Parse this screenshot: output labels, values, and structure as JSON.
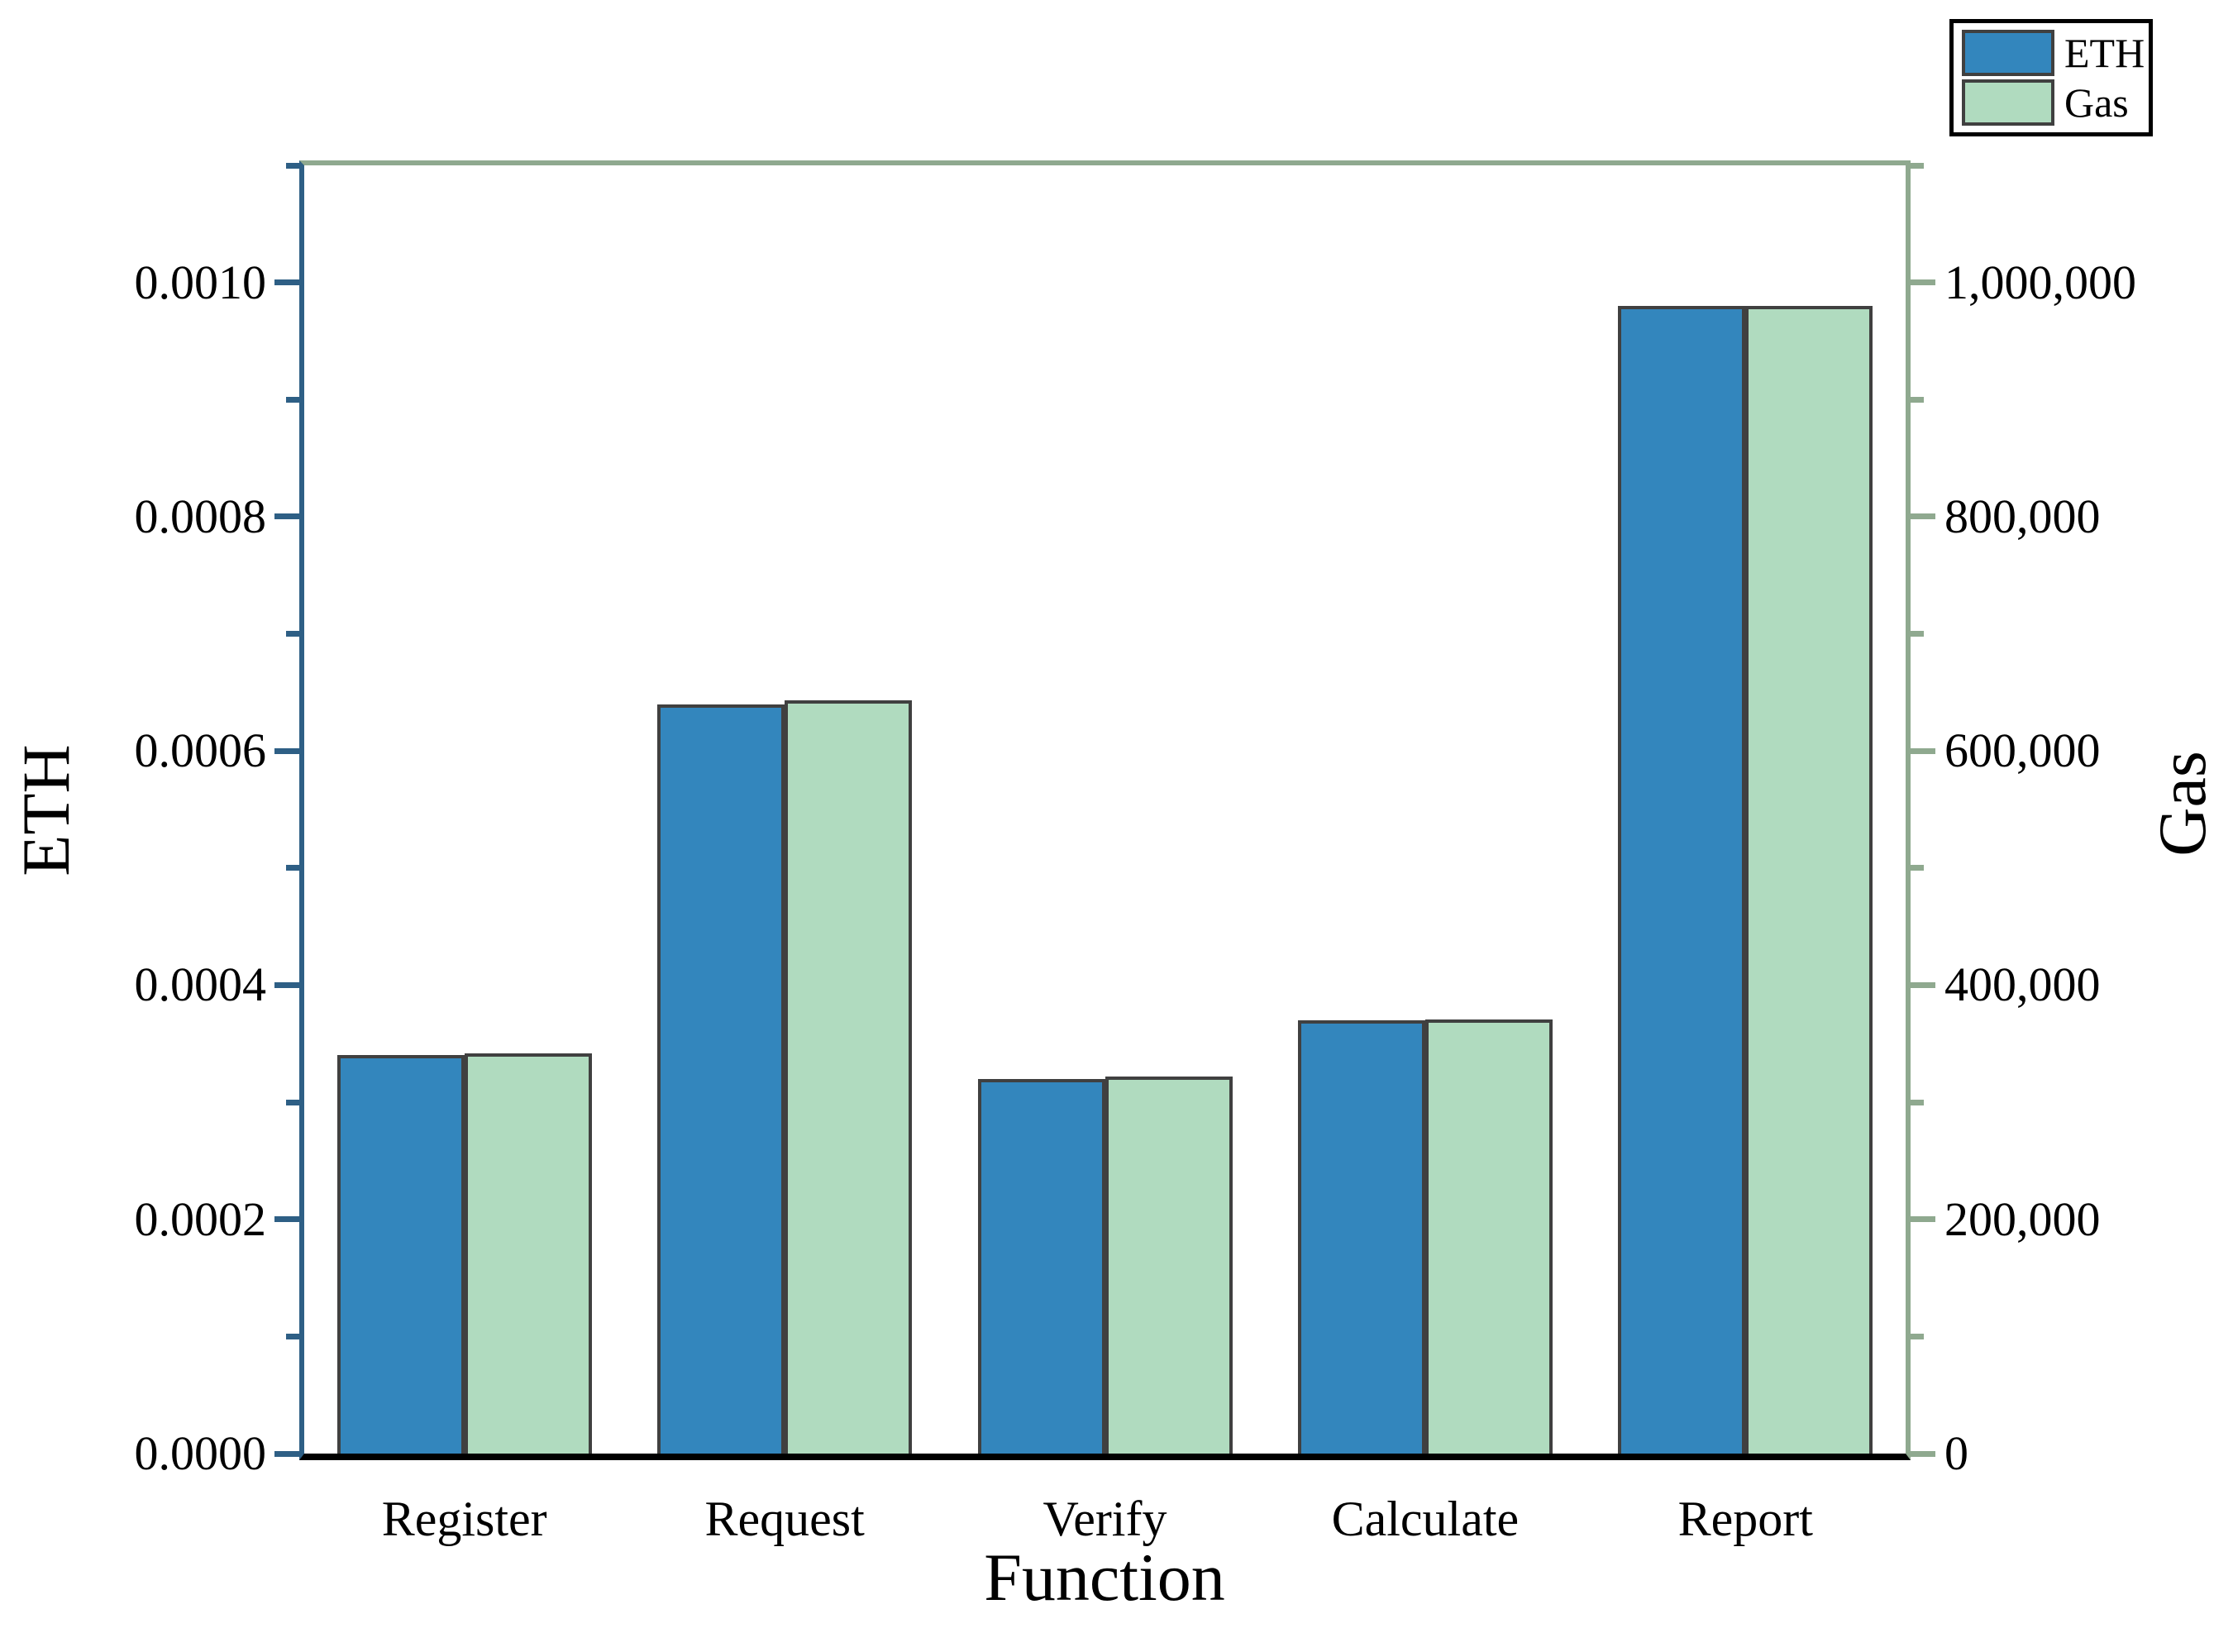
{
  "chart_data": {
    "type": "bar",
    "title": "",
    "xlabel": "Function",
    "ylabel_left": "ETH",
    "ylabel_right": "Gas",
    "categories": [
      "Register",
      "Request",
      "Verify",
      "Calculate",
      "Report"
    ],
    "series": [
      {
        "name": "ETH",
        "axis": "left",
        "color": "#3386BD",
        "values": [
          0.00034,
          0.00064,
          0.00032,
          0.00037,
          0.00098
        ]
      },
      {
        "name": "Gas",
        "axis": "right",
        "color": "#B0DBBF",
        "values": [
          342000,
          643000,
          322000,
          371000,
          980000
        ]
      }
    ],
    "left_axis": {
      "min": 0,
      "max": 0.0011,
      "major": [
        {
          "v": 0.0,
          "label": "0.0000"
        },
        {
          "v": 0.0002,
          "label": "0.0002"
        },
        {
          "v": 0.0004,
          "label": "0.0004"
        },
        {
          "v": 0.0006,
          "label": "0.0006"
        },
        {
          "v": 0.0008,
          "label": "0.0008"
        },
        {
          "v": 0.001,
          "label": "0.0010"
        }
      ],
      "minor": [
        0.0001,
        0.0003,
        0.0005,
        0.0007,
        0.0009,
        0.0011
      ]
    },
    "right_axis": {
      "min": 0,
      "max": 1100000,
      "major": [
        {
          "v": 0,
          "label": "0"
        },
        {
          "v": 200000,
          "label": "200,000"
        },
        {
          "v": 400000,
          "label": "400,000"
        },
        {
          "v": 600000,
          "label": "600,000"
        },
        {
          "v": 800000,
          "label": "800,000"
        },
        {
          "v": 1000000,
          "label": "1,000,000"
        }
      ],
      "minor": [
        100000,
        300000,
        500000,
        700000,
        900000,
        1100000
      ]
    },
    "legend_position": "top-right",
    "grid": false,
    "colors": {
      "left_axis": "#2E5F85",
      "right_axis": "#8FA98F",
      "bottom_axis": "#000000",
      "bar_edge": "#404040",
      "eth_fill": "#3386BD",
      "gas_fill": "#B0DBBF"
    }
  },
  "legend": {
    "items": [
      {
        "label": "ETH"
      },
      {
        "label": "Gas"
      }
    ]
  }
}
